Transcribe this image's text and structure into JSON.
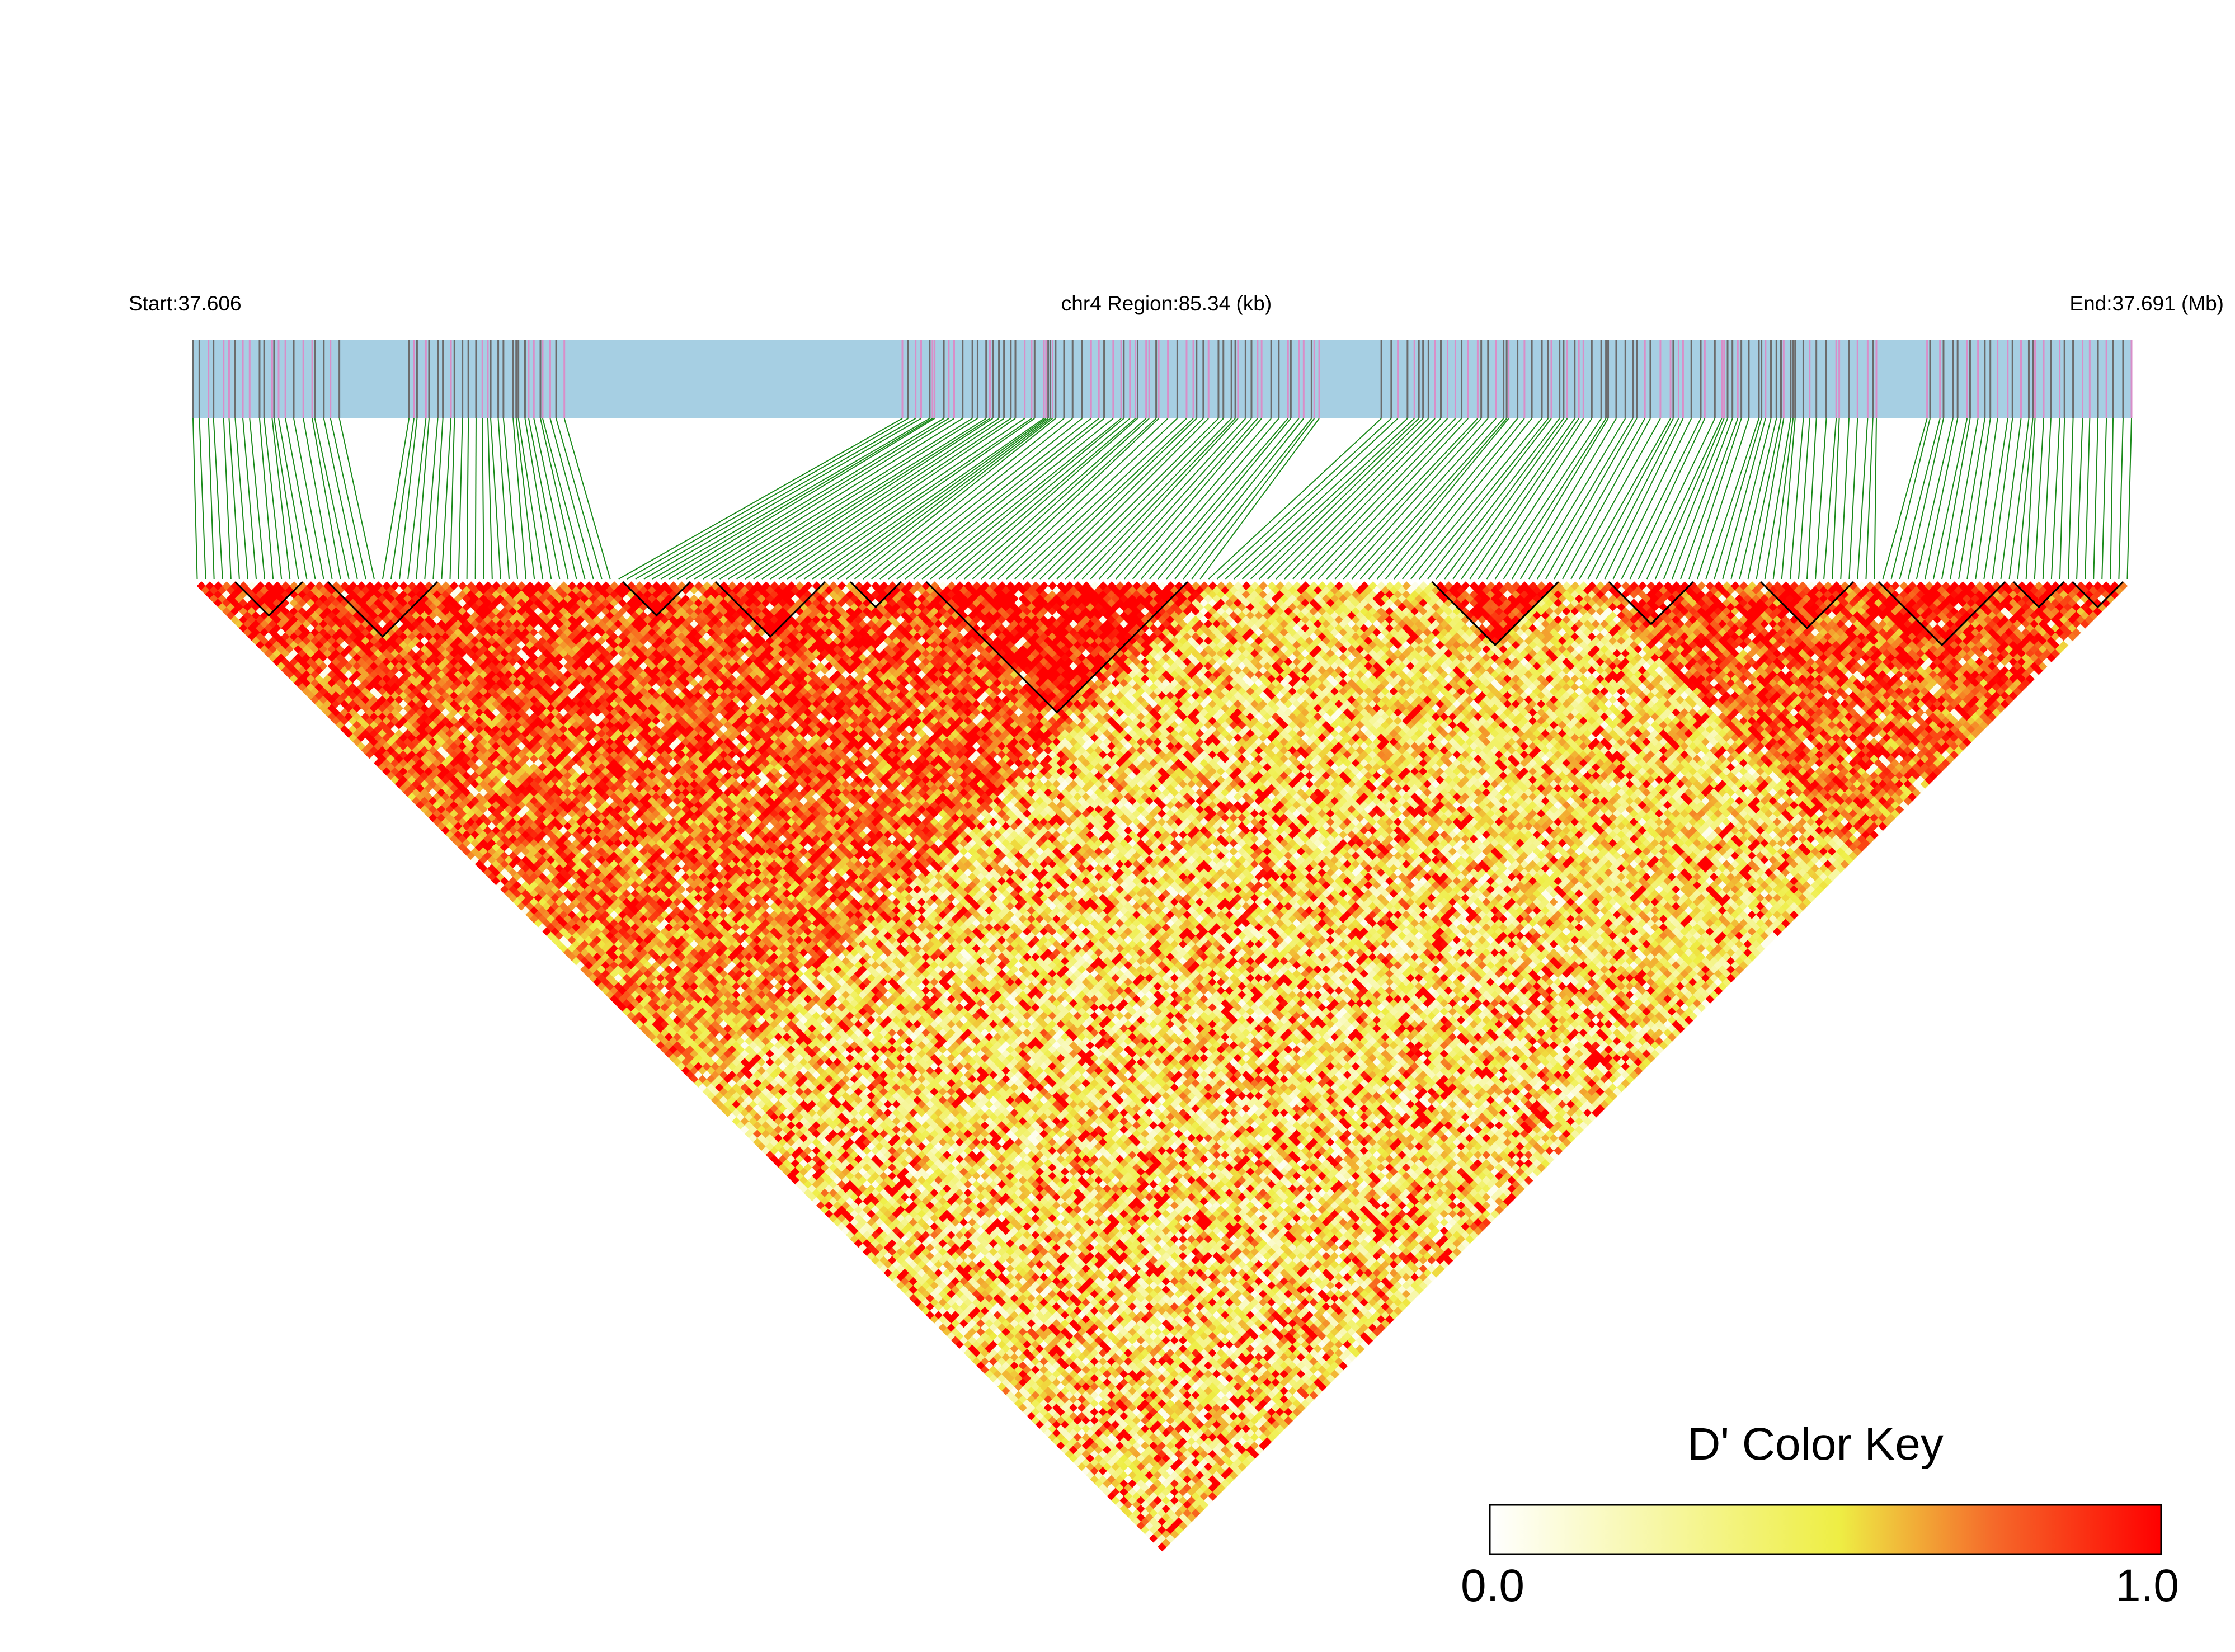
{
  "chart_data": {
    "type": "heatmap",
    "subtype": "LD triangle (pairwise D')",
    "chromosome": "chr4",
    "start_label": "Start:37.606",
    "region_label": "chr4 Region:85.34 (kb)",
    "end_label": "End:37.691 (Mb)",
    "start_mb": 37.606,
    "end_mb": 37.691,
    "region_kb": 85.34,
    "colors": {
      "track_fill": "#a6cfe3",
      "snp_tick_dark": "#6b6b6b",
      "snp_tick_pink": "#d98ec8",
      "connector_lines": "#1a8a1a",
      "block_outline": "#000000",
      "scale_low": "#ffffff",
      "scale_mid": "#eeee44",
      "scale_high": "#ff0000"
    },
    "ld_blocks_region_fraction": [
      [
        0.02,
        0.05
      ],
      [
        0.07,
        0.12
      ],
      [
        0.22,
        0.25
      ],
      [
        0.27,
        0.32
      ],
      [
        0.34,
        0.36
      ],
      [
        0.38,
        0.51
      ],
      [
        0.64,
        0.7
      ],
      [
        0.73,
        0.77
      ],
      [
        0.81,
        0.85
      ],
      [
        0.87,
        0.93
      ],
      [
        0.94,
        0.96
      ],
      [
        0.97,
        0.99
      ]
    ],
    "color_key": {
      "title": "D' Color Key",
      "min_label": "0.0",
      "max_label": "1.0",
      "min": 0.0,
      "max": 1.0
    }
  }
}
